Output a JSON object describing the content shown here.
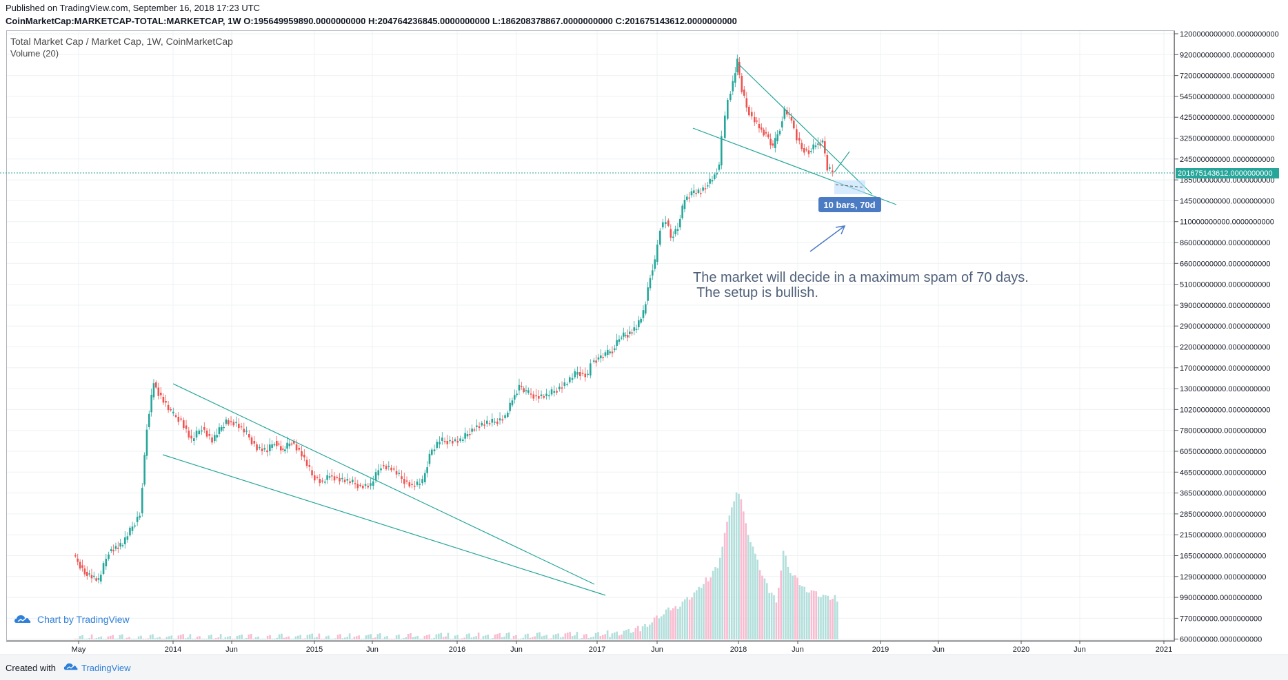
{
  "header": {
    "published": "Published on TradingView.com, September 16, 2018 17:23 UTC",
    "ohlc": "CoinMarketCap:MARKETCAP-TOTAL:MARKETCAP, 1W  O:195649959890.0000000000 H:204764236845.0000000000 L:186208378867.0000000000 C:201675143612.0000000000"
  },
  "legend": {
    "title": "Total Market Cap / Market Cap, 1W, CoinMarketCap",
    "volume": "Volume (20)"
  },
  "watermark": "Chart by TradingView",
  "footer": {
    "created": "Created with",
    "brand": "TradingView"
  },
  "colors": {
    "up": "#26a69a",
    "down": "#ef5350",
    "vol_up": "#b2dfdb",
    "vol_down": "#f8bbd0",
    "trend": "#26a69a",
    "grid": "#eef0f3",
    "price_line": "#26a69a",
    "note": "#50617a"
  },
  "chart_data": {
    "type": "candlestick",
    "x_ticks": [
      "May",
      "2014",
      "Jun",
      "2015",
      "Jun",
      "2016",
      "Jun",
      "2017",
      "Jun",
      "2018",
      "Jun",
      "2019",
      "Jun",
      "2020",
      "Jun",
      "2021"
    ],
    "y_ticks": [
      "1200000000000.0000000000",
      "920000000000.0000000000",
      "720000000000.0000000000",
      "545000000000.0000000000",
      "425000000000.0000000000",
      "325000000000.0000000000",
      "245000000000.0000000000",
      "185000000000.0000000000",
      "145000000000.0000000000",
      "110000000000.0000000000",
      "86000000000.0000000000",
      "66000000000.0000000000",
      "51000000000.0000000000",
      "39000000000.0000000000",
      "29000000000.0000000000",
      "22000000000.0000000000",
      "17000000000.0000000000",
      "13000000000.0000000000",
      "10200000000.0000000000",
      "7800000000.0000000000",
      "6050000000.0000000000",
      "4650000000.0000000000",
      "3650000000.0000000000",
      "2850000000.0000000000",
      "2150000000.0000000000",
      "1650000000.0000000000",
      "1290000000.0000000000",
      "990000000.0000000000",
      "770000000.0000000000",
      "600000000.0000000000"
    ],
    "last_price": "201675143612.0000000000",
    "annotation_lines": [
      "The market will decide in a maximum spam of 70 days.",
      " The setup is bullish."
    ],
    "measure_label": "10 bars, 70d",
    "scale": "log",
    "grid": true
  }
}
